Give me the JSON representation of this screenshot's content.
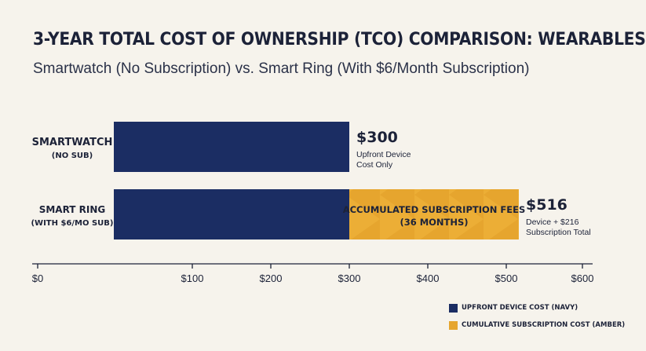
{
  "title": "3-YEAR TOTAL COST OF OWNERSHIP (TCO) COMPARISON: WEARABLES",
  "subtitle": "Smartwatch (No Subscription) vs. Smart Ring (With $6/Month Subscription)",
  "colors": {
    "navy": "#1b2d63",
    "amber": "#e6a52e",
    "background": "#f6f3ec",
    "text": "#1c2238"
  },
  "chart_data": {
    "type": "bar",
    "orientation": "horizontal",
    "stacked": true,
    "categories": [
      {
        "line1": "SMARTWATCH",
        "line2": "(NO SUB)"
      },
      {
        "line1": "SMART RING",
        "line2": "(WITH $6/MO SUB)"
      }
    ],
    "series": [
      {
        "name": "UPFRONT DEVICE COST (NAVY)",
        "values": [
          300,
          300
        ]
      },
      {
        "name": "CUMULATIVE SUBSCRIPTION COST (AMBER)",
        "values": [
          0,
          216
        ]
      }
    ],
    "bar_annotations": [
      {
        "value": "$300",
        "line1": "Upfront Device",
        "line2": "Cost Only"
      },
      {
        "value": "$516",
        "line1": "Device + $216",
        "line2": "Subscription Total"
      }
    ],
    "segment_label": {
      "line1": "ACCUMULATED SUBSCRIPTION FEES",
      "line2": "(36 MONTHS)"
    },
    "x_ticks": [
      "$0",
      "$100",
      "$200",
      "$300",
      "$400",
      "$500",
      "$600"
    ],
    "xlim": [
      0,
      600
    ],
    "legend": "bottom-right",
    "grid": false
  }
}
